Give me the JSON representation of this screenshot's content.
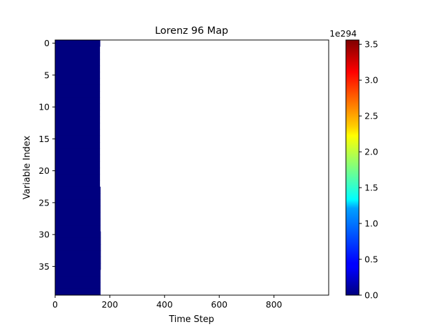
{
  "chart_data": {
    "type": "heatmap",
    "title": "Lorenz 96 Map",
    "xlabel": "Time Step",
    "ylabel": "Variable Index",
    "xlim": [
      0,
      1000
    ],
    "ylim": [
      39.5,
      -0.5
    ],
    "x_ticks": [
      0,
      200,
      400,
      600,
      800
    ],
    "y_ticks": [
      0,
      5,
      10,
      15,
      20,
      25,
      30,
      35
    ],
    "y_reversed": true,
    "colormap": "jet",
    "colorbar": {
      "label_multiplier": "1e294",
      "min": 0.0,
      "max": 3.56,
      "ticks": [
        "0.0",
        "0.5",
        "1.0",
        "1.5",
        "2.0",
        "2.5",
        "3.0",
        "3.5"
      ],
      "tick_values": [
        0.0,
        0.5,
        1.0,
        1.5,
        2.0,
        2.5,
        3.0,
        3.5
      ]
    },
    "n_variables": 40,
    "finite_region_color": "#00007f",
    "finite_until_step": [
      165,
      164,
      164,
      164,
      164,
      164,
      164,
      164,
      164,
      164,
      164,
      164,
      164,
      164,
      164,
      164,
      164,
      164,
      164,
      164,
      164,
      164,
      164,
      166,
      166,
      166,
      166,
      166,
      166,
      166,
      167,
      167,
      167,
      167,
      167,
      167,
      166,
      166,
      166,
      166
    ],
    "note_beyond": "values beyond finite_until_step are NaN/overflow and render as blank"
  }
}
